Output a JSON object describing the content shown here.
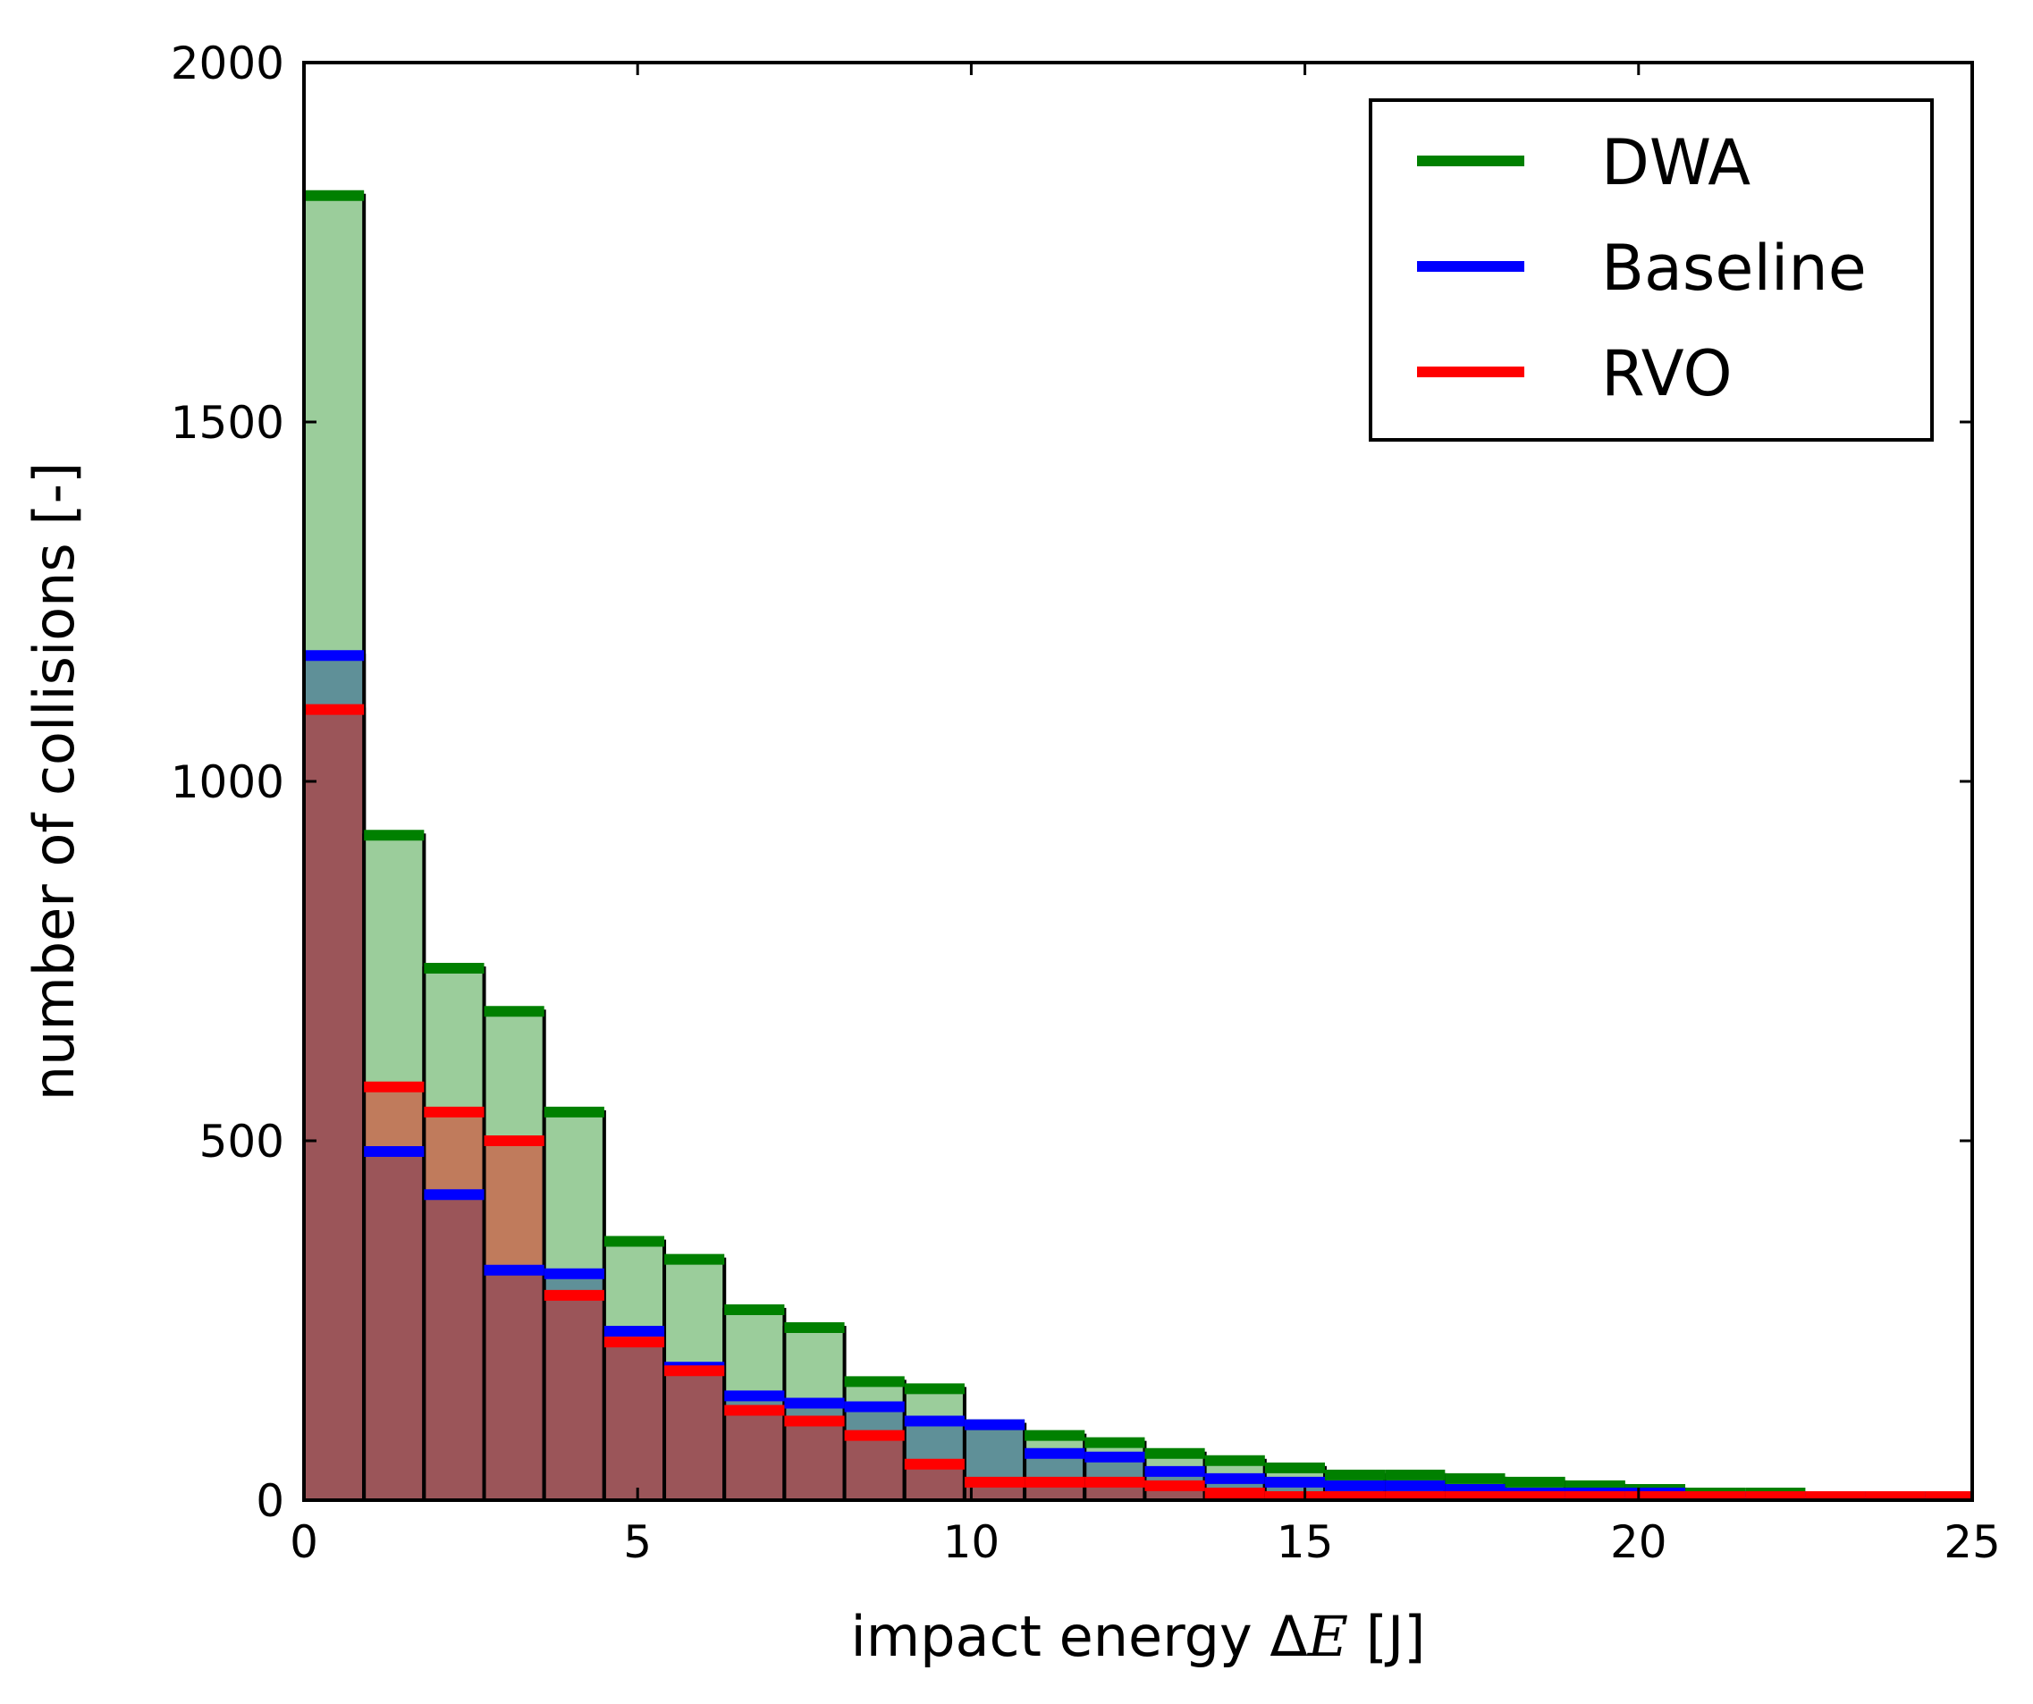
{
  "chart_data": {
    "type": "histogram",
    "xlabel_prefix": "impact energy ",
    "xlabel_delta": "Δ",
    "xlabel_var": "E",
    "xlabel_suffix": " [J]",
    "ylabel": "number of collisions [-]",
    "xlim": [
      0,
      25
    ],
    "ylim": [
      0,
      2000
    ],
    "xticks": [
      "0",
      "5",
      "10",
      "15",
      "20",
      "25"
    ],
    "yticks": [
      "0",
      "500",
      "1000",
      "1500",
      "2000"
    ],
    "bin_width": 0.9,
    "bins_start": [
      0.0,
      0.9,
      1.8,
      2.7,
      3.6,
      4.5,
      5.4,
      6.3,
      7.2,
      8.1,
      9.0,
      9.9,
      10.8,
      11.7,
      12.6,
      13.5,
      14.4,
      15.3,
      16.2,
      17.1,
      18.0,
      18.9,
      19.8,
      20.7,
      21.6,
      22.5,
      23.4,
      24.3
    ],
    "legend_position": "upper right",
    "series": [
      {
        "name": "DWA",
        "color": "#008000",
        "fill": "#9bcd9b",
        "values": [
          1815,
          925,
          740,
          680,
          540,
          360,
          335,
          265,
          240,
          165,
          155,
          105,
          90,
          80,
          65,
          55,
          45,
          35,
          35,
          30,
          25,
          20,
          15,
          10,
          10,
          5,
          5,
          5
        ]
      },
      {
        "name": "Baseline",
        "color": "#0000ff",
        "fill": "#5f9098",
        "values": [
          1175,
          485,
          425,
          320,
          315,
          235,
          185,
          145,
          135,
          130,
          110,
          105,
          65,
          60,
          40,
          30,
          25,
          20,
          20,
          15,
          10,
          10,
          10,
          5,
          5,
          5,
          5,
          0
        ]
      },
      {
        "name": "RVO",
        "color": "#ff0000",
        "fill": "#c07b5c",
        "values": [
          1100,
          575,
          540,
          500,
          285,
          220,
          180,
          125,
          110,
          90,
          50,
          25,
          25,
          25,
          20,
          10,
          5,
          5,
          5,
          5,
          5,
          5,
          5,
          5,
          5,
          5,
          5,
          5
        ]
      }
    ],
    "overlap_fill": "#9b5559"
  }
}
